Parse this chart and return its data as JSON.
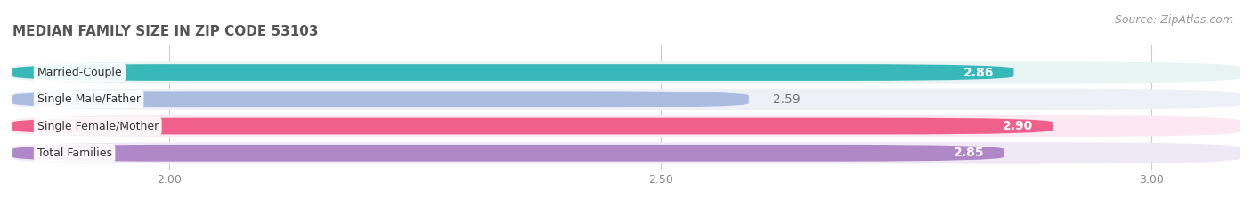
{
  "title": "MEDIAN FAMILY SIZE IN ZIP CODE 53103",
  "source": "Source: ZipAtlas.com",
  "categories": [
    "Married-Couple",
    "Single Male/Father",
    "Single Female/Mother",
    "Total Families"
  ],
  "values": [
    2.86,
    2.59,
    2.9,
    2.85
  ],
  "bar_colors": [
    "#38b8b8",
    "#aabce0",
    "#f0608a",
    "#b088c8"
  ],
  "bar_bg_colors": [
    "#e8f4f4",
    "#eef0f8",
    "#fce8f0",
    "#efe8f5"
  ],
  "separator_color": "#d8d8d8",
  "xlim_min": 1.84,
  "xlim_max": 3.09,
  "xticks": [
    2.0,
    2.5,
    3.0
  ],
  "xtick_labels": [
    "2.00",
    "2.50",
    "3.00"
  ],
  "title_fontsize": 11,
  "source_fontsize": 9,
  "label_fontsize": 9,
  "tick_fontsize": 9,
  "value_fontsize": 10,
  "background_color": "#ffffff"
}
